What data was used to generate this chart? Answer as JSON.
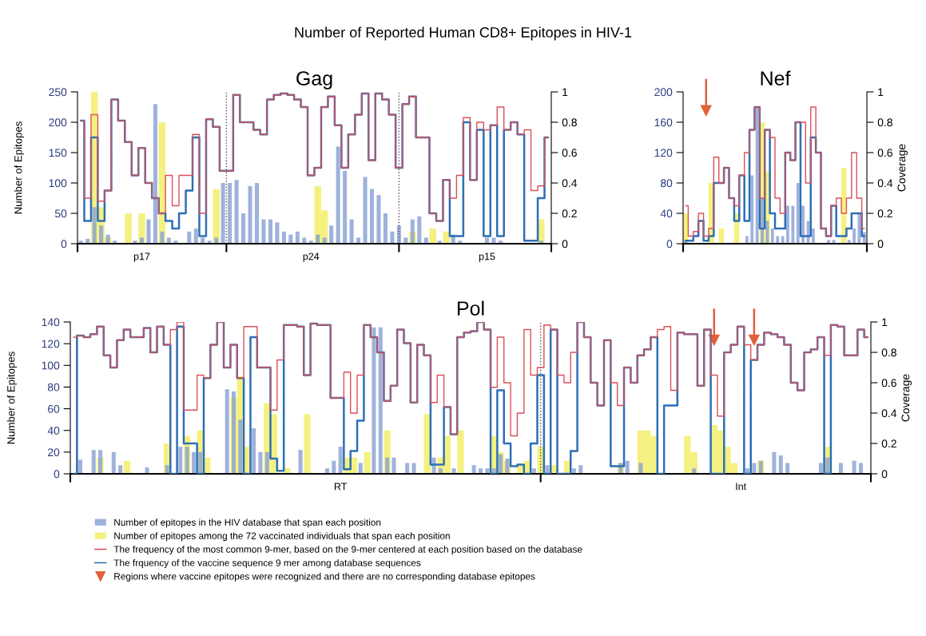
{
  "chart_data": [
    {
      "type": "bar",
      "title": "Gag",
      "ylabel": "Number of Epitopes",
      "annotations": [
        "Number of Reported Human CD8+ Epitopes in HIV-1"
      ],
      "categories": [
        null,
        null,
        null,
        null,
        null,
        null,
        null,
        null,
        null,
        "p17",
        null,
        null,
        null,
        null,
        null,
        null,
        null,
        null,
        null,
        null,
        null,
        null,
        null,
        null,
        null,
        null,
        null,
        null,
        null,
        null,
        null,
        null,
        null,
        null,
        "p24",
        null,
        null,
        null,
        null,
        null,
        null,
        null,
        null,
        null,
        null,
        null,
        null,
        null,
        null,
        null,
        null,
        null,
        null,
        null,
        null,
        null,
        null,
        null,
        null,
        null,
        "p15",
        null,
        null,
        null,
        null,
        null,
        null,
        null,
        null,
        null
      ],
      "ylim": [
        0,
        250
      ],
      "yticks": [
        0,
        50,
        100,
        150,
        200,
        250
      ],
      "y2lim": [
        0,
        1
      ],
      "y2ticks": [
        0,
        0.2,
        0.4,
        0.6,
        0.8,
        1
      ],
      "line_style": "solid",
      "series": [
        {
          "color": "#8da4d6",
          "values": [
            5,
            8,
            60,
            30,
            15,
            5,
            0,
            0,
            5,
            10,
            40,
            230,
            20,
            10,
            5,
            0,
            20,
            25,
            10,
            5,
            10,
            100,
            100,
            105,
            50,
            95,
            100,
            40,
            40,
            35,
            20,
            15,
            20,
            10,
            5,
            15,
            10,
            30,
            160,
            120,
            40,
            10,
            110,
            90,
            80,
            50,
            20,
            30,
            10,
            40,
            45,
            10,
            0,
            5,
            0,
            15,
            5,
            0,
            0,
            0,
            10,
            10,
            5,
            0,
            0,
            0,
            0,
            0,
            5,
            0
          ]
        },
        {
          "color": "#f3ef6a",
          "values": [
            0,
            0,
            250,
            60,
            10,
            0,
            0,
            50,
            0,
            50,
            0,
            0,
            200,
            0,
            0,
            0,
            0,
            0,
            0,
            0,
            90,
            0,
            0,
            0,
            0,
            0,
            0,
            0,
            0,
            0,
            0,
            0,
            0,
            0,
            0,
            95,
            55,
            0,
            0,
            0,
            0,
            0,
            0,
            0,
            0,
            0,
            0,
            0,
            0,
            20,
            0,
            0,
            25,
            0,
            20,
            0,
            0,
            0,
            0,
            0,
            0,
            0,
            0,
            0,
            0,
            0,
            0,
            0,
            40,
            0
          ]
        },
        {
          "type": "step",
          "axis": "y2",
          "color": "#d9505a",
          "values": [
            0.81,
            0.3,
            0.85,
            0.28,
            0.35,
            0.95,
            0.81,
            0.67,
            0.45,
            0.63,
            0.4,
            0.3,
            0.2,
            0.45,
            0.25,
            0.45,
            0.45,
            0.72,
            0.2,
            0.82,
            0.77,
            0.48,
            0.48,
            0.98,
            0.8,
            0.8,
            0.75,
            0.72,
            0.95,
            0.98,
            0.99,
            0.98,
            0.95,
            0.9,
            0.45,
            0.5,
            0.9,
            0.97,
            0.78,
            0.5,
            0.72,
            0.85,
            0.99,
            0.55,
            0.99,
            0.95,
            0.85,
            0.5,
            0.92,
            0.97,
            0.7,
            0.7,
            0.2,
            0.15,
            0.42,
            0.3,
            0.45,
            0.83,
            0.42,
            0.8,
            0.75,
            0.78,
            0.9,
            0.75,
            0.8,
            0.72,
            0.75,
            0.35,
            0.38,
            0.7
          ]
        },
        {
          "type": "step",
          "axis": "y2",
          "color": "#2e6fb5",
          "values": [
            0.81,
            0.15,
            0.7,
            0.15,
            0.35,
            0.95,
            0.81,
            0.67,
            0.45,
            0.63,
            0.4,
            0.3,
            0.2,
            0.15,
            0.1,
            0.2,
            0.35,
            0.7,
            0.05,
            0.82,
            0.77,
            0.48,
            0.48,
            0.98,
            0.8,
            0.8,
            0.75,
            0.72,
            0.95,
            0.98,
            0.99,
            0.98,
            0.95,
            0.9,
            0.45,
            0.5,
            0.9,
            0.97,
            0.78,
            0.5,
            0.72,
            0.85,
            0.99,
            0.55,
            0.99,
            0.95,
            0.85,
            0.5,
            0.92,
            0.97,
            0.7,
            0.7,
            0.2,
            0.15,
            0.42,
            0.05,
            0.05,
            0.8,
            0.42,
            0.75,
            0.05,
            0.78,
            0.05,
            0.75,
            0.8,
            0.72,
            0.02,
            0.02,
            0.3,
            0.7
          ]
        }
      ]
    },
    {
      "type": "bar",
      "title": "Nef",
      "y2label": "Coverage",
      "categories": [
        null,
        null,
        null,
        null,
        null,
        null,
        null,
        null,
        null,
        null,
        null,
        null,
        null,
        null,
        null,
        null,
        null,
        null,
        null,
        null,
        null,
        null,
        null,
        null,
        null,
        null,
        null,
        null,
        null,
        null,
        null,
        null,
        null,
        null,
        null,
        null
      ],
      "ylim": [
        0,
        200
      ],
      "yticks": [
        0,
        40,
        80,
        120,
        160,
        200
      ],
      "y2lim": [
        0,
        1
      ],
      "y2ticks": [
        0,
        0.2,
        0.4,
        0.6,
        0.8,
        1
      ],
      "line_style": "solid",
      "series": [
        {
          "color": "#8da4d6",
          "values": [
            5,
            0,
            0,
            0,
            0,
            0,
            0,
            0,
            0,
            0,
            0,
            0,
            10,
            90,
            180,
            60,
            30,
            20,
            10,
            10,
            50,
            50,
            80,
            50,
            30,
            20,
            0,
            0,
            5,
            5,
            0,
            0,
            5,
            20,
            40,
            15
          ]
        },
        {
          "color": "#f3ef6a",
          "values": [
            40,
            0,
            0,
            0,
            0,
            80,
            0,
            20,
            0,
            0,
            40,
            0,
            0,
            0,
            0,
            160,
            95,
            0,
            0,
            0,
            0,
            0,
            0,
            0,
            0,
            0,
            0,
            0,
            0,
            0,
            0,
            100,
            0,
            0,
            0,
            0
          ]
        },
        {
          "type": "step",
          "axis": "y2",
          "color": "#d9505a",
          "values": [
            0.25,
            0.05,
            0.08,
            0.2,
            0.05,
            0.1,
            0.57,
            0.4,
            0.5,
            0.3,
            0.25,
            0.45,
            0.6,
            0.75,
            0.9,
            0.3,
            0.75,
            0.7,
            0.3,
            0.2,
            0.6,
            0.55,
            0.8,
            0.8,
            0.4,
            0.9,
            0.6,
            0.1,
            0.05,
            0.25,
            0.3,
            0.2,
            0.3,
            0.6,
            0.3,
            0.1
          ]
        },
        {
          "type": "step",
          "axis": "y2",
          "color": "#2e6fb5",
          "values": [
            0.02,
            0.02,
            0.05,
            0.15,
            0.02,
            0.05,
            0.4,
            0.4,
            0.5,
            0.3,
            0.15,
            0.45,
            0.15,
            0.75,
            0.9,
            0.1,
            0.75,
            0.2,
            0.1,
            0.1,
            0.6,
            0.55,
            0.8,
            0.05,
            0.05,
            0.7,
            0.6,
            0.1,
            0.05,
            0.25,
            0.05,
            0.05,
            0.1,
            0.2,
            0.2,
            0.05
          ]
        },
        {
          "type": "scatter",
          "marker": "triangle",
          "color": "#e0613a",
          "values": [
            null,
            null,
            null,
            null,
            175,
            null,
            null,
            null,
            null,
            null,
            null,
            null,
            null,
            null,
            null,
            null,
            null,
            null,
            null,
            null,
            null,
            null,
            null,
            null,
            null,
            null,
            null,
            null,
            null,
            null,
            null,
            null,
            null,
            null,
            null,
            null
          ]
        }
      ]
    },
    {
      "type": "bar",
      "title": "Pol",
      "ylabel": "Number of Epitopes",
      "y2label": "Coverage",
      "categories": [
        null,
        null,
        null,
        null,
        null,
        null,
        null,
        null,
        null,
        null,
        null,
        null,
        null,
        null,
        null,
        null,
        null,
        null,
        null,
        null,
        null,
        null,
        null,
        null,
        null,
        null,
        null,
        null,
        null,
        null,
        null,
        null,
        null,
        null,
        null,
        null,
        null,
        null,
        null,
        null,
        "RT",
        null,
        null,
        null,
        null,
        null,
        null,
        null,
        null,
        null,
        null,
        null,
        null,
        null,
        null,
        null,
        null,
        null,
        null,
        null,
        null,
        null,
        null,
        null,
        null,
        null,
        null,
        null,
        null,
        null,
        null,
        null,
        null,
        null,
        null,
        null,
        null,
        null,
        null,
        null,
        null,
        null,
        null,
        null,
        null,
        null,
        null,
        null,
        null,
        null,
        null,
        null,
        null,
        null,
        null,
        null,
        null,
        null,
        null,
        null,
        "Int",
        null,
        null,
        null,
        null,
        null,
        null,
        null,
        null,
        null,
        null,
        null,
        null,
        null,
        null,
        null,
        null,
        null,
        null,
        null
      ],
      "ylim": [
        0,
        140
      ],
      "yticks": [
        0,
        20,
        40,
        60,
        80,
        100,
        120,
        140
      ],
      "y2lim": [
        0,
        1
      ],
      "y2ticks": [
        0,
        0.2,
        0.4,
        0.6,
        0.8,
        1
      ],
      "line_style": "solid",
      "legend": "bottom",
      "series": [
        {
          "name": "Number of epitopes in the HIV database that span each position",
          "color": "#8da4d6",
          "values": [
            0,
            13,
            0,
            22,
            22,
            0,
            20,
            8,
            0,
            0,
            0,
            6,
            0,
            0,
            8,
            0,
            25,
            25,
            20,
            20,
            0,
            0,
            0,
            78,
            76,
            50,
            0,
            42,
            20,
            20,
            0,
            0,
            0,
            0,
            22,
            0,
            0,
            0,
            5,
            12,
            25,
            0,
            0,
            10,
            0,
            135,
            135,
            15,
            15,
            0,
            10,
            10,
            0,
            0,
            15,
            5,
            0,
            5,
            0,
            0,
            8,
            5,
            5,
            5,
            18,
            14,
            0,
            0,
            0,
            5,
            0,
            8,
            0,
            0,
            0,
            5,
            8,
            0,
            0,
            0,
            0,
            0,
            10,
            12,
            0,
            10,
            0,
            0,
            0,
            0,
            0,
            0,
            0,
            5,
            0,
            0,
            0,
            0,
            0,
            0,
            0,
            5,
            10,
            12,
            0,
            20,
            17,
            10,
            0,
            0,
            0,
            0,
            10,
            15,
            0,
            10,
            0,
            12,
            10,
            0
          ]
        },
        {
          "name": "Number of epitopes among the 72 vaccinated individuals that span each position",
          "color": "#f3ef6a",
          "values": [
            0,
            0,
            0,
            0,
            15,
            0,
            0,
            0,
            12,
            0,
            0,
            0,
            0,
            0,
            28,
            0,
            0,
            35,
            0,
            40,
            15,
            0,
            0,
            0,
            70,
            90,
            25,
            0,
            0,
            65,
            55,
            0,
            5,
            0,
            0,
            55,
            0,
            0,
            0,
            0,
            0,
            15,
            15,
            0,
            20,
            0,
            0,
            40,
            0,
            0,
            0,
            0,
            0,
            55,
            0,
            15,
            35,
            0,
            40,
            0,
            0,
            0,
            0,
            35,
            20,
            12,
            0,
            8,
            12,
            0,
            25,
            0,
            8,
            0,
            12,
            0,
            0,
            0,
            0,
            0,
            0,
            0,
            10,
            0,
            0,
            40,
            40,
            35,
            0,
            0,
            0,
            0,
            35,
            20,
            0,
            0,
            45,
            40,
            25,
            10,
            0,
            0,
            0,
            12,
            0,
            0,
            0,
            0,
            0,
            0,
            0,
            0,
            0,
            25,
            0,
            0,
            0,
            0,
            0,
            0
          ]
        },
        {
          "type": "step",
          "axis": "y2",
          "name": "The frequency of the most common 9-mer, based on the 9-mer centered at each position based on the database",
          "color": "#d9505a",
          "values": [
            0.9,
            0.91,
            0.9,
            0.92,
            0.97,
            0.78,
            0.7,
            0.88,
            0.95,
            0.9,
            0.9,
            0.96,
            0.8,
            0.97,
            0.85,
            0.95,
            1.0,
            0.42,
            0.42,
            0.65,
            0.63,
            0.85,
            1.0,
            0.7,
            0.85,
            0.63,
            0.97,
            0.97,
            0.7,
            0.7,
            0.42,
            0.75,
            0.98,
            0.98,
            0.97,
            0.65,
            0.99,
            0.98,
            0.98,
            0.5,
            0.5,
            0.67,
            0.4,
            0.65,
            0.98,
            0.9,
            0.8,
            0.48,
            0.58,
            0.95,
            0.86,
            0.47,
            0.85,
            0.78,
            0.47,
            0.65,
            0.44,
            0.26,
            0.9,
            0.93,
            0.94,
            1.0,
            0.95,
            0.57,
            0.9,
            0.6,
            0.25,
            0.4,
            0.95,
            0.65,
            0.7,
            0.98,
            0.95,
            0.65,
            0.6,
            0.8,
            1.0,
            0.9,
            0.6,
            0.45,
            0.88,
            0.6,
            0.45,
            0.7,
            0.6,
            0.78,
            0.82,
            0.9,
            0.95,
            0.97,
            0.55,
            0.93,
            0.92,
            0.92,
            0.58,
            0.95,
            0.65,
            0.38,
            0.8,
            0.85,
            0.97,
            0.85,
            0.75,
            0.85,
            0.93,
            0.92,
            0.9,
            0.85,
            0.6,
            0.55,
            0.8,
            0.82,
            0.9,
            0.78,
            0.98,
            0.97,
            0.78,
            0.78,
            0.95,
            0.9
          ]
        },
        {
          "type": "step",
          "axis": "y2",
          "name": "The frquency of the vaccine sequence 9 mer among database sequences",
          "color": "#2e6fb5",
          "values": [
            0,
            0.91,
            0.9,
            0.92,
            0.97,
            0.78,
            0.7,
            0.88,
            0.95,
            0.9,
            0.9,
            0.96,
            0.8,
            0.97,
            0.85,
            0,
            0.97,
            0.2,
            0.2,
            0,
            0.63,
            0.85,
            1.0,
            0.7,
            0.85,
            0.63,
            0,
            0.9,
            0.7,
            0.7,
            0.1,
            0.02,
            0.98,
            0.98,
            0.97,
            0.65,
            0.99,
            0.98,
            0.98,
            0.5,
            0.5,
            0.03,
            0.15,
            0.35,
            0.98,
            0.9,
            0.8,
            0.48,
            0.58,
            0.95,
            0.86,
            0.47,
            0.85,
            0.78,
            0.06,
            0.06,
            0.44,
            0.26,
            0.9,
            0.93,
            0.94,
            1.0,
            0.95,
            0,
            0.55,
            0.2,
            0.05,
            0.06,
            0,
            0.2,
            0.65,
            0,
            0.95,
            0,
            0,
            0.15,
            1.0,
            0.9,
            0.6,
            0.45,
            0.88,
            0.05,
            0.05,
            0.7,
            0.6,
            0.78,
            0.82,
            0.9,
            0,
            0.45,
            0.45,
            0.93,
            0.92,
            0.92,
            0.58,
            0.95,
            0,
            0,
            0.8,
            0.85,
            0.97,
            0,
            0.75,
            0.85,
            0.93,
            0.92,
            0.9,
            0.85,
            0.6,
            0.55,
            0.8,
            0.82,
            0.9,
            0,
            0.98,
            0.97,
            0.78,
            0.78,
            0.95,
            0.9
          ]
        },
        {
          "type": "scatter",
          "name": "Regions where vaccine epitopes were recognized and there are no corresponding database epitopes",
          "marker": "triangle",
          "color": "#e0613a",
          "values": [
            null,
            null,
            null,
            null,
            null,
            null,
            null,
            null,
            null,
            null,
            null,
            null,
            null,
            null,
            null,
            null,
            null,
            null,
            null,
            null,
            null,
            null,
            null,
            null,
            null,
            null,
            null,
            null,
            null,
            null,
            null,
            null,
            null,
            null,
            null,
            null,
            null,
            null,
            null,
            null,
            null,
            null,
            null,
            null,
            null,
            null,
            null,
            null,
            null,
            null,
            null,
            null,
            null,
            null,
            null,
            null,
            null,
            null,
            null,
            null,
            null,
            null,
            null,
            null,
            null,
            null,
            null,
            null,
            null,
            null,
            null,
            null,
            null,
            null,
            null,
            null,
            null,
            null,
            null,
            null,
            null,
            null,
            null,
            null,
            null,
            null,
            null,
            null,
            null,
            null,
            null,
            null,
            null,
            null,
            null,
            null,
            123,
            null,
            null,
            null,
            null,
            null,
            123,
            null,
            null,
            null,
            null,
            null,
            null,
            null,
            null,
            null,
            null,
            null,
            null,
            null,
            null,
            null,
            null,
            null
          ]
        }
      ]
    }
  ]
}
